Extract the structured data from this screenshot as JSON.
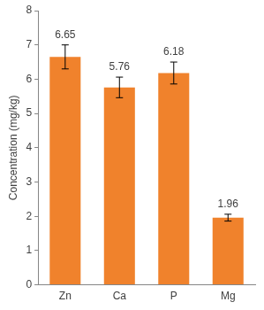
{
  "chart_data": {
    "type": "bar",
    "y_label": "Concentration (mg/kg)",
    "categories": [
      "Zn",
      "Ca",
      "P",
      "Mg"
    ],
    "values": [
      6.65,
      5.76,
      6.18,
      1.96
    ],
    "errors": [
      0.35,
      0.3,
      0.32,
      0.1
    ],
    "color": "#f0822c",
    "ylim": [
      0,
      8
    ],
    "yticks": [
      0,
      1,
      2,
      3,
      4,
      5,
      6,
      7,
      8
    ],
    "grid": false,
    "data_labels": true
  }
}
